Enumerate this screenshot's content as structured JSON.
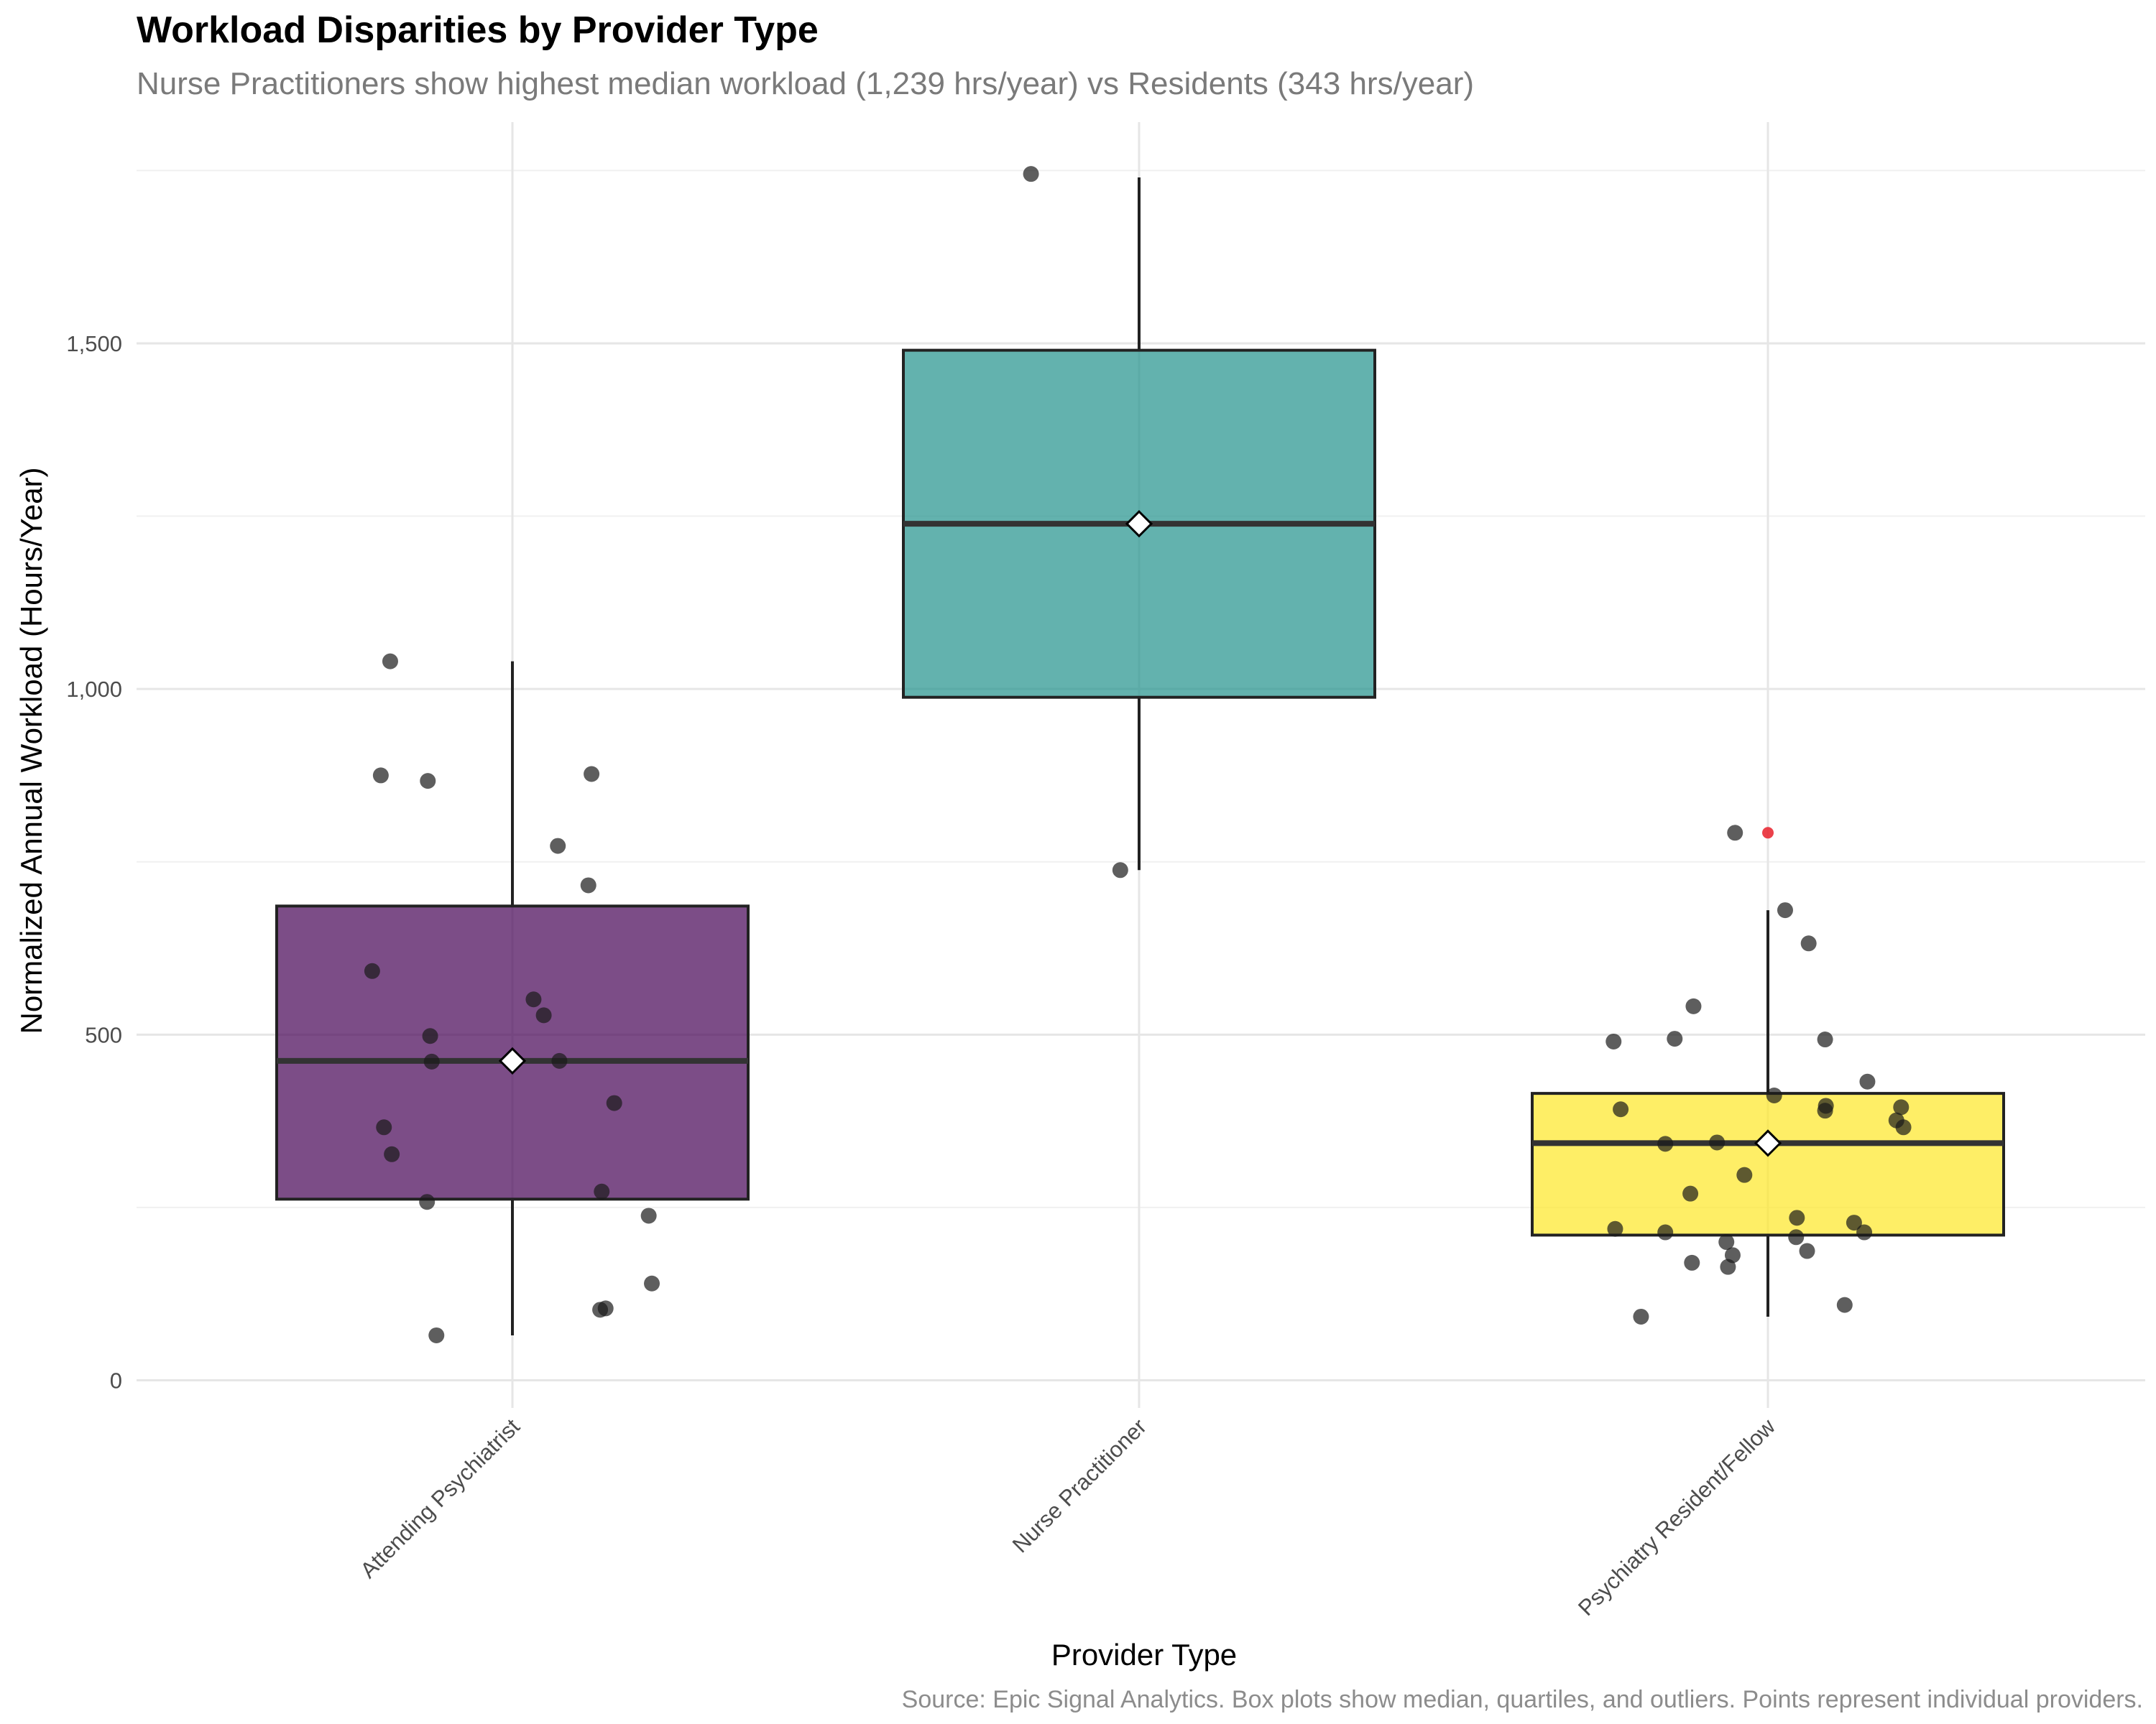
{
  "chart_data": {
    "type": "box",
    "title": "Workload Disparities by Provider Type",
    "subtitle": "Nurse Practitioners show highest median workload (1,239 hrs/year) vs Residents (343 hrs/year)",
    "caption": "Source: Epic Signal Analytics. Box plots show median, quartiles, and outliers. Points represent individual providers.",
    "xlabel": "Provider Type",
    "ylabel": "Normalized Annual Workload (Hours/Year)",
    "ylim": [
      -40,
      1820
    ],
    "y_ticks": [
      0,
      500,
      1000,
      1500
    ],
    "y_tick_labels": [
      "0",
      "500",
      "1,000",
      "1,500"
    ],
    "grid": true,
    "legend": "none",
    "categories": [
      "Attending Psychiatrist",
      "Nurse Practitioner",
      "Psychiatry Resident/Fellow"
    ],
    "boxes": [
      {
        "category": "Attending Psychiatrist",
        "color": "#440154",
        "whisker_low": 65,
        "q1": 262,
        "median": 462,
        "q3": 686,
        "whisker_high": 1040,
        "mean": 462,
        "outliers": []
      },
      {
        "category": "Nurse Practitioner",
        "color": "#21918c",
        "whisker_low": 738,
        "q1": 988,
        "median": 1239,
        "q3": 1490,
        "whisker_high": 1740,
        "mean": 1239,
        "outliers": []
      },
      {
        "category": "Psychiatry Resident/Fellow",
        "color": "#fde725",
        "whisker_low": 92,
        "q1": 210,
        "median": 343,
        "q3": 415,
        "whisker_high": 680,
        "mean": 343,
        "outliers": [
          792
        ]
      }
    ],
    "points": [
      {
        "category": "Attending Psychiatrist",
        "values": [
          {
            "x": -0.156,
            "y": 1040
          },
          {
            "x": -0.168,
            "y": 875
          },
          {
            "x": -0.108,
            "y": 867
          },
          {
            "x": 0.101,
            "y": 877
          },
          {
            "x": 0.058,
            "y": 773
          },
          {
            "x": 0.097,
            "y": 716
          },
          {
            "x": -0.179,
            "y": 592
          },
          {
            "x": 0.027,
            "y": 551
          },
          {
            "x": 0.04,
            "y": 528
          },
          {
            "x": -0.105,
            "y": 498
          },
          {
            "x": -0.103,
            "y": 461
          },
          {
            "x": 0.06,
            "y": 462
          },
          {
            "x": 0.13,
            "y": 401
          },
          {
            "x": -0.164,
            "y": 366
          },
          {
            "x": -0.154,
            "y": 327
          },
          {
            "x": 0.114,
            "y": 273
          },
          {
            "x": -0.109,
            "y": 258
          },
          {
            "x": 0.174,
            "y": 238
          },
          {
            "x": 0.178,
            "y": 140
          },
          {
            "x": 0.119,
            "y": 104
          },
          {
            "x": 0.112,
            "y": 102
          },
          {
            "x": -0.097,
            "y": 65
          }
        ]
      },
      {
        "category": "Nurse Practitioner",
        "values": [
          {
            "x": -0.138,
            "y": 1745
          },
          {
            "x": -0.024,
            "y": 738
          }
        ]
      },
      {
        "category": "Psychiatry Resident/Fellow",
        "values": [
          {
            "x": -0.042,
            "y": 792
          },
          {
            "x": 0.022,
            "y": 680
          },
          {
            "x": 0.052,
            "y": 632
          },
          {
            "x": -0.095,
            "y": 541
          },
          {
            "x": -0.197,
            "y": 490
          },
          {
            "x": -0.119,
            "y": 494
          },
          {
            "x": 0.073,
            "y": 493
          },
          {
            "x": 0.127,
            "y": 432
          },
          {
            "x": 0.008,
            "y": 412
          },
          {
            "x": 0.074,
            "y": 397
          },
          {
            "x": 0.073,
            "y": 390
          },
          {
            "x": -0.188,
            "y": 392
          },
          {
            "x": 0.17,
            "y": 395
          },
          {
            "x": 0.164,
            "y": 376
          },
          {
            "x": 0.173,
            "y": 366
          },
          {
            "x": -0.131,
            "y": 342
          },
          {
            "x": -0.065,
            "y": 344
          },
          {
            "x": -0.03,
            "y": 297
          },
          {
            "x": -0.099,
            "y": 270
          },
          {
            "x": 0.037,
            "y": 235
          },
          {
            "x": 0.11,
            "y": 228
          },
          {
            "x": -0.195,
            "y": 219
          },
          {
            "x": -0.131,
            "y": 214
          },
          {
            "x": 0.123,
            "y": 214
          },
          {
            "x": 0.036,
            "y": 207
          },
          {
            "x": -0.053,
            "y": 200
          },
          {
            "x": 0.05,
            "y": 187
          },
          {
            "x": -0.045,
            "y": 181
          },
          {
            "x": -0.097,
            "y": 170
          },
          {
            "x": -0.051,
            "y": 164
          },
          {
            "x": 0.098,
            "y": 109
          },
          {
            "x": -0.162,
            "y": 92
          }
        ]
      }
    ]
  }
}
